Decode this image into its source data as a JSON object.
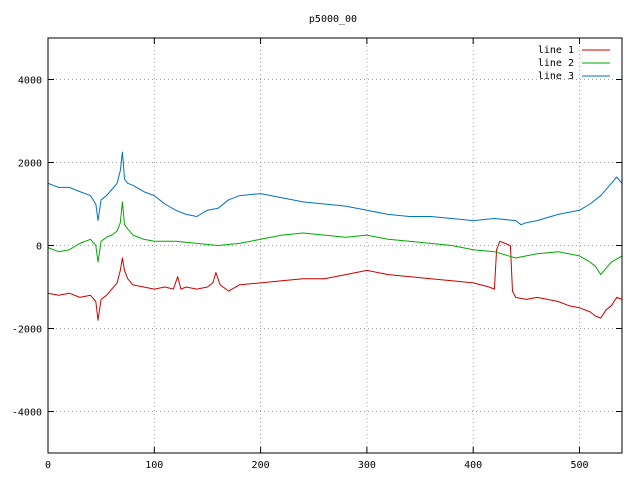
{
  "chart_data": {
    "type": "line",
    "title": "p5000_00",
    "xlabel": "",
    "ylabel": "",
    "xlim": [
      0,
      540
    ],
    "ylim": [
      -5000,
      5000
    ],
    "x_ticks": [
      0,
      100,
      200,
      300,
      400,
      500
    ],
    "y_ticks": [
      -4000,
      -2000,
      0,
      2000,
      4000
    ],
    "grid": true,
    "legend_position": "top-right",
    "series": [
      {
        "name": "line 1",
        "color": "#cc0000",
        "x": [
          0,
          10,
          20,
          30,
          40,
          45,
          47,
          50,
          55,
          60,
          65,
          68,
          70,
          72,
          75,
          80,
          90,
          100,
          110,
          118,
          122,
          125,
          130,
          140,
          150,
          155,
          158,
          162,
          170,
          180,
          200,
          220,
          240,
          260,
          280,
          300,
          320,
          340,
          360,
          380,
          400,
          415,
          420,
          422,
          425,
          430,
          435,
          437,
          440,
          450,
          460,
          470,
          480,
          490,
          500,
          510,
          515,
          520,
          525,
          530,
          535,
          540
        ],
        "values": [
          -1150,
          -1200,
          -1150,
          -1250,
          -1200,
          -1350,
          -1800,
          -1300,
          -1200,
          -1050,
          -900,
          -600,
          -300,
          -600,
          -800,
          -950,
          -1000,
          -1050,
          -1000,
          -1050,
          -750,
          -1050,
          -1000,
          -1050,
          -1000,
          -900,
          -650,
          -950,
          -1100,
          -950,
          -900,
          -850,
          -800,
          -800,
          -700,
          -600,
          -700,
          -750,
          -800,
          -850,
          -900,
          -1000,
          -1050,
          -100,
          100,
          50,
          0,
          -1100,
          -1250,
          -1300,
          -1250,
          -1300,
          -1350,
          -1450,
          -1500,
          -1600,
          -1700,
          -1750,
          -1550,
          -1450,
          -1250,
          -1300
        ]
      },
      {
        "name": "line 2",
        "color": "#00aa00",
        "x": [
          0,
          10,
          20,
          30,
          40,
          45,
          47,
          50,
          55,
          60,
          65,
          68,
          70,
          72,
          75,
          80,
          90,
          100,
          120,
          140,
          160,
          180,
          200,
          220,
          240,
          260,
          280,
          300,
          320,
          340,
          360,
          380,
          400,
          420,
          440,
          450,
          460,
          480,
          500,
          510,
          515,
          520,
          530,
          540
        ],
        "values": [
          -50,
          -150,
          -100,
          50,
          150,
          0,
          -400,
          100,
          200,
          250,
          350,
          550,
          1050,
          500,
          400,
          250,
          150,
          100,
          100,
          50,
          0,
          50,
          150,
          250,
          300,
          250,
          200,
          250,
          150,
          100,
          50,
          0,
          -100,
          -150,
          -300,
          -250,
          -200,
          -150,
          -250,
          -400,
          -500,
          -700,
          -400,
          -250
        ]
      },
      {
        "name": "line 3",
        "color": "#0072c6",
        "x": [
          0,
          10,
          20,
          30,
          40,
          45,
          47,
          50,
          55,
          60,
          65,
          68,
          70,
          72,
          75,
          80,
          90,
          100,
          110,
          120,
          130,
          140,
          150,
          160,
          170,
          180,
          200,
          220,
          240,
          260,
          280,
          300,
          320,
          340,
          360,
          380,
          400,
          420,
          440,
          445,
          450,
          460,
          480,
          500,
          510,
          520,
          530,
          535,
          540
        ],
        "values": [
          1500,
          1400,
          1400,
          1300,
          1200,
          1000,
          600,
          1100,
          1200,
          1350,
          1500,
          1800,
          2250,
          1600,
          1500,
          1450,
          1300,
          1200,
          1000,
          850,
          750,
          700,
          850,
          900,
          1100,
          1200,
          1250,
          1150,
          1050,
          1000,
          950,
          850,
          750,
          700,
          700,
          650,
          600,
          650,
          600,
          500,
          550,
          600,
          750,
          850,
          1000,
          1200,
          1500,
          1650,
          1500
        ]
      }
    ]
  }
}
